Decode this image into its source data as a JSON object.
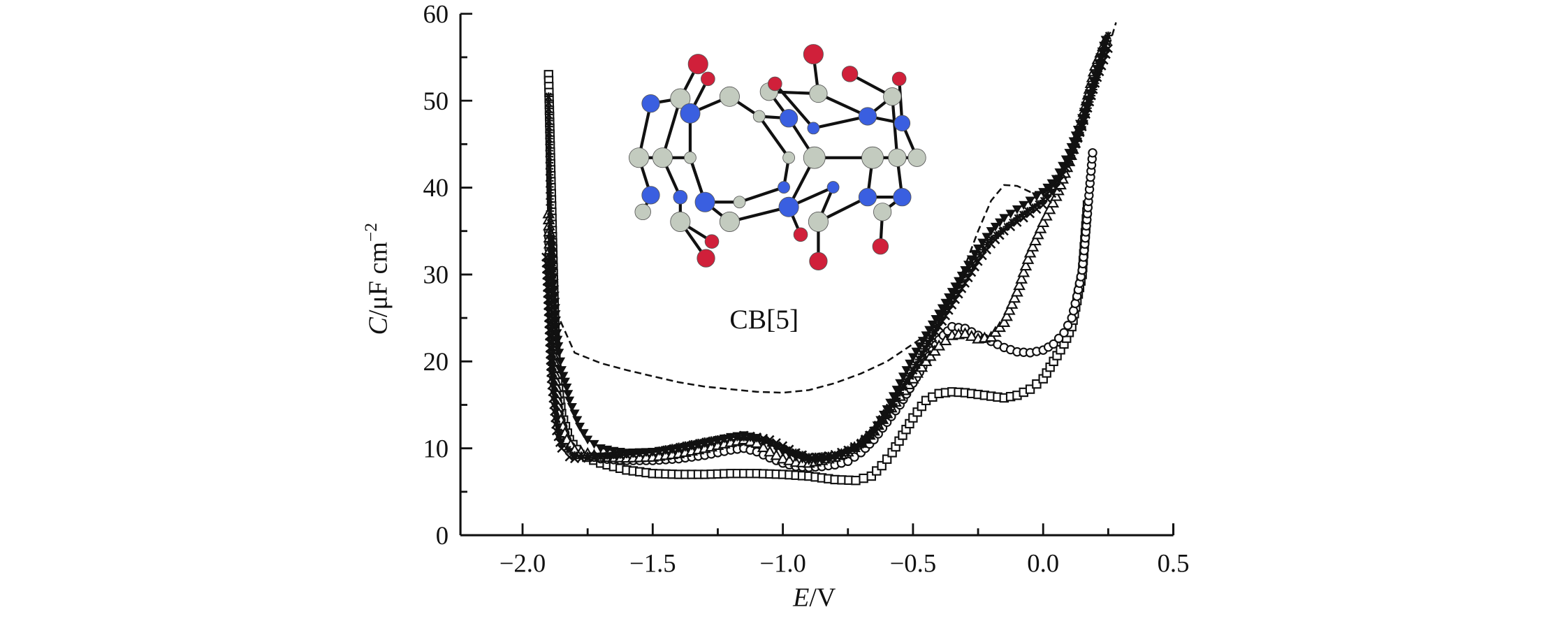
{
  "chart_data": {
    "type": "scatter",
    "xlabel_var": "E",
    "xlabel_unit": "/V",
    "ylabel_var": "C",
    "ylabel_unit": "/μF cm",
    "ylabel_exp": "−2",
    "xlim": [
      -2.24,
      0.5
    ],
    "ylim": [
      0,
      60
    ],
    "x_ticks": [
      -2.0,
      -1.5,
      -1.0,
      -0.5,
      0.0,
      0.5
    ],
    "x_tick_labels": [
      "−2.0",
      "−1.5",
      "−1.0",
      "−0.5",
      "0.0",
      "0.5"
    ],
    "x_minor_ticks": [
      -1.75,
      -1.25,
      -0.75,
      -0.25,
      0.25
    ],
    "y_ticks": [
      0,
      10,
      20,
      30,
      40,
      50,
      60
    ],
    "y_tick_labels": [
      "0",
      "10",
      "20",
      "30",
      "40",
      "50",
      "60"
    ],
    "y_minor_ticks": [
      5,
      15,
      25,
      35,
      45,
      55
    ],
    "grid": false,
    "legend": "none",
    "inset_label": "CB[5]",
    "atom_colors": {
      "carbon": "#c3cbbf",
      "nitrogen": "#3a5fe0",
      "oxygen": "#d0203a"
    },
    "series": [
      {
        "marker": "dashed-line",
        "x": [
          -1.88,
          -1.86,
          -1.83,
          -1.8,
          -1.7,
          -1.6,
          -1.5,
          -1.4,
          -1.3,
          -1.2,
          -1.1,
          -1.0,
          -0.9,
          -0.8,
          -0.7,
          -0.6,
          -0.5,
          -0.45,
          -0.4,
          -0.35,
          -0.3,
          -0.25,
          -0.2,
          -0.15,
          -0.1,
          -0.05,
          0.0,
          0.05,
          0.1,
          0.15,
          0.2,
          0.25,
          0.28
        ],
        "y": [
          27,
          25,
          23,
          21,
          19.8,
          19,
          18.3,
          17.6,
          17.1,
          16.8,
          16.5,
          16.4,
          16.7,
          17.5,
          18.6,
          20,
          22,
          23,
          24.5,
          27.5,
          31,
          35,
          38.5,
          40.3,
          40.2,
          39.5,
          39.5,
          40,
          43,
          47,
          51.5,
          56,
          59
        ]
      },
      {
        "marker": "open-square",
        "x": [
          -1.9,
          -1.89,
          -1.88,
          -1.87,
          -1.85,
          -1.82,
          -1.78,
          -1.7,
          -1.6,
          -1.5,
          -1.4,
          -1.3,
          -1.2,
          -1.1,
          -1.0,
          -0.9,
          -0.8,
          -0.72,
          -0.66,
          -0.62,
          -0.58,
          -0.54,
          -0.5,
          -0.45,
          -0.4,
          -0.35,
          -0.3,
          -0.25,
          -0.2,
          -0.15,
          -0.1,
          -0.05,
          0.0,
          0.04,
          0.08,
          0.11,
          0.13,
          0.15,
          0.16,
          0.17
        ],
        "y": [
          53,
          40,
          28,
          19,
          14,
          11,
          9.3,
          8.3,
          7.5,
          7.1,
          7,
          7,
          7.1,
          7.1,
          7,
          6.8,
          6.4,
          6.3,
          6.8,
          8,
          9.5,
          11.5,
          13.5,
          15.5,
          16.3,
          16.5,
          16.4,
          16.2,
          16,
          15.8,
          16.1,
          16.8,
          18,
          20,
          22,
          24,
          27,
          30,
          34,
          38
        ]
      },
      {
        "marker": "open-circle",
        "x": [
          -1.9,
          -1.89,
          -1.88,
          -1.86,
          -1.83,
          -1.8,
          -1.7,
          -1.6,
          -1.5,
          -1.4,
          -1.3,
          -1.2,
          -1.15,
          -1.1,
          -1.05,
          -1.0,
          -0.95,
          -0.9,
          -0.85,
          -0.8,
          -0.75,
          -0.7,
          -0.65,
          -0.6,
          -0.55,
          -0.5,
          -0.45,
          -0.4,
          -0.35,
          -0.3,
          -0.25,
          -0.2,
          -0.15,
          -0.1,
          -0.05,
          0.0,
          0.04,
          0.08,
          0.11,
          0.13,
          0.15,
          0.16,
          0.17,
          0.19
        ],
        "y": [
          35,
          26,
          19,
          14,
          11,
          9.5,
          8.8,
          8.6,
          8.6,
          8.8,
          9.2,
          9.8,
          10,
          9.6,
          8.9,
          8.3,
          7.9,
          7.8,
          7.9,
          8.1,
          8.5,
          9.5,
          11,
          13,
          15,
          17.5,
          20,
          22.5,
          24,
          23.8,
          23,
          22.3,
          21.6,
          21.1,
          21,
          21.3,
          22,
          23.3,
          25,
          27.5,
          30.5,
          33.5,
          37,
          44
        ]
      },
      {
        "marker": "open-triangle-up",
        "x": [
          -1.9,
          -1.89,
          -1.88,
          -1.86,
          -1.83,
          -1.8,
          -1.7,
          -1.6,
          -1.5,
          -1.4,
          -1.3,
          -1.2,
          -1.15,
          -1.1,
          -1.05,
          -1.0,
          -0.95,
          -0.9,
          -0.85,
          -0.8,
          -0.75,
          -0.7,
          -0.65,
          -0.6,
          -0.55,
          -0.5,
          -0.45,
          -0.4,
          -0.35,
          -0.3,
          -0.25,
          -0.2,
          -0.15,
          -0.1,
          -0.05,
          0.0,
          0.05,
          0.1,
          0.15,
          0.2,
          0.24
        ],
        "y": [
          37,
          28,
          20,
          14,
          11,
          9.8,
          9,
          8.9,
          9,
          9.4,
          10,
          10.7,
          11,
          10.6,
          9.6,
          8.8,
          8.4,
          8.3,
          8.6,
          9,
          9.6,
          10.6,
          12,
          14,
          16,
          18,
          20,
          21.8,
          23,
          23.2,
          22.6,
          22.8,
          24.5,
          28,
          32.5,
          36,
          39,
          43,
          48,
          54,
          57
        ]
      },
      {
        "marker": "cross",
        "x": [
          -1.91,
          -1.9,
          -1.89,
          -1.87,
          -1.85,
          -1.82,
          -1.8,
          -1.7,
          -1.6,
          -1.5,
          -1.4,
          -1.3,
          -1.2,
          -1.15,
          -1.1,
          -1.05,
          -1.0,
          -0.95,
          -0.9,
          -0.85,
          -0.8,
          -0.75,
          -0.7,
          -0.65,
          -0.6,
          -0.55,
          -0.5,
          -0.45,
          -0.4,
          -0.35,
          -0.3,
          -0.25,
          -0.2,
          -0.15,
          -0.1,
          -0.05,
          0.0,
          0.05,
          0.1,
          0.15,
          0.2,
          0.25
        ],
        "y": [
          32,
          25,
          18,
          12,
          10,
          9,
          8.8,
          9,
          9.2,
          9.5,
          10,
          10.6,
          11.2,
          11.5,
          11.3,
          11,
          10.3,
          9.5,
          9,
          9,
          9.3,
          9.8,
          10.6,
          12,
          14,
          16.5,
          19,
          21.5,
          24,
          26.5,
          29,
          31.5,
          33.5,
          35,
          36,
          37,
          38,
          40,
          43,
          47,
          52,
          56
        ]
      },
      {
        "marker": "asterisk",
        "x": [
          -1.9,
          -1.895,
          -1.89,
          -1.88,
          -1.87,
          -1.85,
          -1.8,
          -1.7,
          -1.6,
          -1.5,
          -1.4,
          -1.3,
          -1.2,
          -1.1,
          -1.0,
          -0.9,
          -0.8,
          -0.7,
          -0.6,
          -0.5,
          -0.4,
          -0.3,
          -0.2,
          -0.1,
          0.0,
          0.1,
          0.15,
          0.2,
          0.25
        ],
        "y": [
          50.5,
          38,
          26,
          18,
          13,
          10.5,
          9.2,
          9.1,
          9.3,
          9.6,
          10.2,
          10.8,
          11.3,
          11.2,
          10,
          9,
          9.2,
          10.4,
          13.8,
          19,
          24.5,
          30,
          34,
          36.5,
          38.5,
          43,
          47,
          52,
          57.5
        ]
      },
      {
        "marker": "filled-triangle-down",
        "x": [
          -1.89,
          -1.88,
          -1.87,
          -1.86,
          -1.85,
          -1.83,
          -1.82,
          -1.8,
          -1.78,
          -1.75,
          -1.7,
          -1.65,
          -1.6,
          -1.5,
          -1.4,
          -1.3,
          -1.2,
          -1.15,
          -1.1,
          -1.05,
          -1.0,
          -0.95,
          -0.9,
          -0.85,
          -0.8,
          -0.75,
          -0.7,
          -0.65,
          -0.6,
          -0.55,
          -0.5,
          -0.45,
          -0.4,
          -0.35,
          -0.3,
          -0.25,
          -0.2,
          -0.15,
          -0.1,
          -0.05,
          0.0,
          0.05,
          0.1,
          0.15,
          0.2,
          0.24
        ],
        "y": [
          34,
          29,
          24,
          21,
          19,
          17,
          15.5,
          14,
          12.5,
          11,
          10,
          9.7,
          9.5,
          9.6,
          10,
          10.6,
          11.3,
          11.5,
          11.2,
          10.5,
          9.6,
          9,
          8.6,
          8.6,
          8.9,
          9.5,
          10.5,
          12,
          14.5,
          17.5,
          20.5,
          23,
          25.5,
          28,
          30.5,
          33,
          35,
          36.5,
          37.5,
          38.5,
          39.5,
          41,
          44,
          48,
          53,
          57
        ]
      }
    ]
  }
}
